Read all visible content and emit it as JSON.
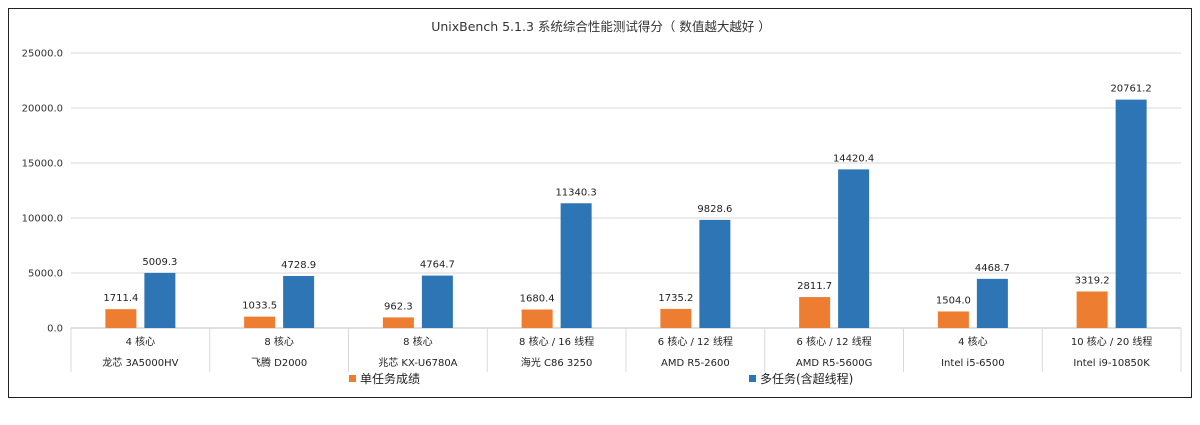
{
  "chart_data": {
    "type": "bar",
    "title": "UnixBench 5.1.3 系统综合性能测试得分（ 数值越大越好 ）",
    "xlabel": "",
    "ylabel": "",
    "ylim": [
      0,
      25000
    ],
    "yticks": [
      "0.0",
      "5000.0",
      "10000.0",
      "15000.0",
      "20000.0",
      "25000.0"
    ],
    "grid": true,
    "legend_position": "bottom",
    "categories": [
      {
        "sub": "4 核心",
        "name": "龙芯 3A5000HV"
      },
      {
        "sub": "8 核心",
        "name": "飞腾 D2000"
      },
      {
        "sub": "8 核心",
        "name": "兆芯 KX-U6780A"
      },
      {
        "sub": "8 核心 / 16 线程",
        "name": "海光 C86 3250"
      },
      {
        "sub": "6 核心 / 12 线程",
        "name": "AMD R5-2600"
      },
      {
        "sub": "6 核心 / 12 线程",
        "name": "AMD R5-5600G"
      },
      {
        "sub": "4 核心",
        "name": "Intel i5-6500"
      },
      {
        "sub": "10 核心 / 20 线程",
        "name": "Intel i9-10850K"
      }
    ],
    "series": [
      {
        "name": "单任务成绩",
        "color": "#ED7D31",
        "values": [
          1711.4,
          1033.5,
          962.3,
          1680.4,
          1735.2,
          2811.7,
          1504.0,
          3319.2
        ],
        "labels": [
          "1711.4",
          "1033.5",
          "962.3",
          "1680.4",
          "1735.2",
          "2811.7",
          "1504.0",
          "3319.2"
        ]
      },
      {
        "name": "多任务(含超线程)",
        "color": "#2E75B6",
        "values": [
          5009.3,
          4728.9,
          4764.7,
          11340.3,
          9828.6,
          14420.4,
          4468.7,
          20761.2
        ],
        "labels": [
          "5009.3",
          "4728.9",
          "4764.7",
          "11340.3",
          "9828.6",
          "14420.4",
          "4468.7",
          "20761.2"
        ]
      }
    ]
  }
}
